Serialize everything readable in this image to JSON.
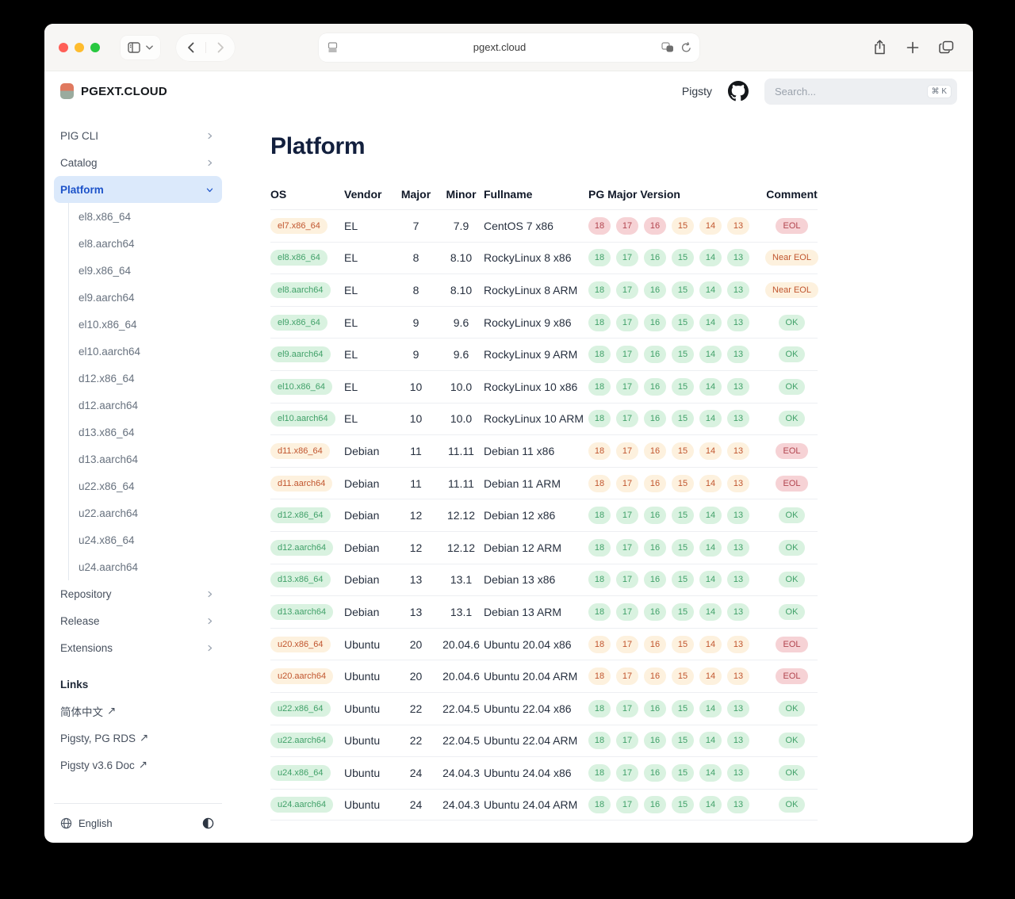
{
  "browser": {
    "url": "pgext.cloud",
    "traffic_lights": {
      "close": "#ff5f57",
      "minimize": "#febc2e",
      "zoom": "#28c840"
    }
  },
  "header": {
    "brand": "PGEXT.CLOUD",
    "nav_link": "Pigsty",
    "search_placeholder": "Search...",
    "search_shortcut": "⌘ K"
  },
  "sidebar": {
    "sections": [
      {
        "label": "PIG CLI",
        "chevron": "right",
        "active": false
      },
      {
        "label": "Catalog",
        "chevron": "right",
        "active": false
      },
      {
        "label": "Platform",
        "chevron": "down",
        "active": true,
        "children": [
          "el8.x86_64",
          "el8.aarch64",
          "el9.x86_64",
          "el9.aarch64",
          "el10.x86_64",
          "el10.aarch64",
          "d12.x86_64",
          "d12.aarch64",
          "d13.x86_64",
          "d13.aarch64",
          "u22.x86_64",
          "u22.aarch64",
          "u24.x86_64",
          "u24.aarch64"
        ]
      },
      {
        "label": "Repository",
        "chevron": "right",
        "active": false
      },
      {
        "label": "Release",
        "chevron": "right",
        "active": false
      },
      {
        "label": "Extensions",
        "chevron": "right",
        "active": false
      }
    ],
    "links_heading": "Links",
    "external_arrow": "↗",
    "links": [
      "简体中文",
      "Pigsty, PG RDS",
      "Pigsty v3.6 Doc"
    ],
    "language": "English"
  },
  "main": {
    "title": "Platform",
    "table": {
      "headers": [
        "OS",
        "Vendor",
        "Major",
        "Minor",
        "Fullname",
        "PG Major Version",
        "Comment"
      ],
      "pg_versions": [
        "18",
        "17",
        "16",
        "15",
        "14",
        "13"
      ],
      "rows": [
        {
          "os": "el7.x86_64",
          "os_tone": "cream",
          "vendor": "EL",
          "major": "7",
          "minor": "7.9",
          "fullname": "CentOS 7 x86",
          "pg_tones": [
            "red",
            "red",
            "red",
            "cream",
            "cream",
            "cream"
          ],
          "comment": "EOL",
          "comment_tone": "red"
        },
        {
          "os": "el8.x86_64",
          "os_tone": "green",
          "vendor": "EL",
          "major": "8",
          "minor": "8.10",
          "fullname": "RockyLinux 8 x86",
          "pg_tones": "green",
          "comment": "Near EOL",
          "comment_tone": "cream"
        },
        {
          "os": "el8.aarch64",
          "os_tone": "green",
          "vendor": "EL",
          "major": "8",
          "minor": "8.10",
          "fullname": "RockyLinux 8 ARM",
          "pg_tones": "green",
          "comment": "Near EOL",
          "comment_tone": "cream"
        },
        {
          "os": "el9.x86_64",
          "os_tone": "green",
          "vendor": "EL",
          "major": "9",
          "minor": "9.6",
          "fullname": "RockyLinux 9 x86",
          "pg_tones": "green",
          "comment": "OK",
          "comment_tone": "green"
        },
        {
          "os": "el9.aarch64",
          "os_tone": "green",
          "vendor": "EL",
          "major": "9",
          "minor": "9.6",
          "fullname": "RockyLinux 9 ARM",
          "pg_tones": "green",
          "comment": "OK",
          "comment_tone": "green"
        },
        {
          "os": "el10.x86_64",
          "os_tone": "green",
          "vendor": "EL",
          "major": "10",
          "minor": "10.0",
          "fullname": "RockyLinux 10 x86",
          "pg_tones": "green",
          "comment": "OK",
          "comment_tone": "green"
        },
        {
          "os": "el10.aarch64",
          "os_tone": "green",
          "vendor": "EL",
          "major": "10",
          "minor": "10.0",
          "fullname": "RockyLinux 10 ARM",
          "pg_tones": "green",
          "comment": "OK",
          "comment_tone": "green"
        },
        {
          "os": "d11.x86_64",
          "os_tone": "cream",
          "vendor": "Debian",
          "major": "11",
          "minor": "11.11",
          "fullname": "Debian 11 x86",
          "pg_tones": "cream",
          "comment": "EOL",
          "comment_tone": "red"
        },
        {
          "os": "d11.aarch64",
          "os_tone": "cream",
          "vendor": "Debian",
          "major": "11",
          "minor": "11.11",
          "fullname": "Debian 11 ARM",
          "pg_tones": "cream",
          "comment": "EOL",
          "comment_tone": "red"
        },
        {
          "os": "d12.x86_64",
          "os_tone": "green",
          "vendor": "Debian",
          "major": "12",
          "minor": "12.12",
          "fullname": "Debian 12 x86",
          "pg_tones": "green",
          "comment": "OK",
          "comment_tone": "green"
        },
        {
          "os": "d12.aarch64",
          "os_tone": "green",
          "vendor": "Debian",
          "major": "12",
          "minor": "12.12",
          "fullname": "Debian 12 ARM",
          "pg_tones": "green",
          "comment": "OK",
          "comment_tone": "green"
        },
        {
          "os": "d13.x86_64",
          "os_tone": "green",
          "vendor": "Debian",
          "major": "13",
          "minor": "13.1",
          "fullname": "Debian 13 x86",
          "pg_tones": "green",
          "comment": "OK",
          "comment_tone": "green"
        },
        {
          "os": "d13.aarch64",
          "os_tone": "green",
          "vendor": "Debian",
          "major": "13",
          "minor": "13.1",
          "fullname": "Debian 13 ARM",
          "pg_tones": "green",
          "comment": "OK",
          "comment_tone": "green"
        },
        {
          "os": "u20.x86_64",
          "os_tone": "cream",
          "vendor": "Ubuntu",
          "major": "20",
          "minor": "20.04.6",
          "fullname": "Ubuntu 20.04 x86",
          "pg_tones": "cream",
          "comment": "EOL",
          "comment_tone": "red"
        },
        {
          "os": "u20.aarch64",
          "os_tone": "cream",
          "vendor": "Ubuntu",
          "major": "20",
          "minor": "20.04.6",
          "fullname": "Ubuntu 20.04 ARM",
          "pg_tones": "cream",
          "comment": "EOL",
          "comment_tone": "red"
        },
        {
          "os": "u22.x86_64",
          "os_tone": "green",
          "vendor": "Ubuntu",
          "major": "22",
          "minor": "22.04.5",
          "fullname": "Ubuntu 22.04 x86",
          "pg_tones": "green",
          "comment": "OK",
          "comment_tone": "green"
        },
        {
          "os": "u22.aarch64",
          "os_tone": "green",
          "vendor": "Ubuntu",
          "major": "22",
          "minor": "22.04.5",
          "fullname": "Ubuntu 22.04 ARM",
          "pg_tones": "green",
          "comment": "OK",
          "comment_tone": "green"
        },
        {
          "os": "u24.x86_64",
          "os_tone": "green",
          "vendor": "Ubuntu",
          "major": "24",
          "minor": "24.04.3",
          "fullname": "Ubuntu 24.04 x86",
          "pg_tones": "green",
          "comment": "OK",
          "comment_tone": "green"
        },
        {
          "os": "u24.aarch64",
          "os_tone": "green",
          "vendor": "Ubuntu",
          "major": "24",
          "minor": "24.04.3",
          "fullname": "Ubuntu 24.04 ARM",
          "pg_tones": "green",
          "comment": "OK",
          "comment_tone": "green"
        }
      ]
    }
  },
  "colors": {
    "tones": {
      "green": {
        "bg": "#d9f2e0",
        "text": "#41a169"
      },
      "cream": {
        "bg": "#fdf1de",
        "text": "#c1562f"
      },
      "red": {
        "bg": "#f6d2d5",
        "text": "#b2454f"
      }
    },
    "active_bg": "#dbe9fb",
    "active_text": "#1d53c9"
  }
}
